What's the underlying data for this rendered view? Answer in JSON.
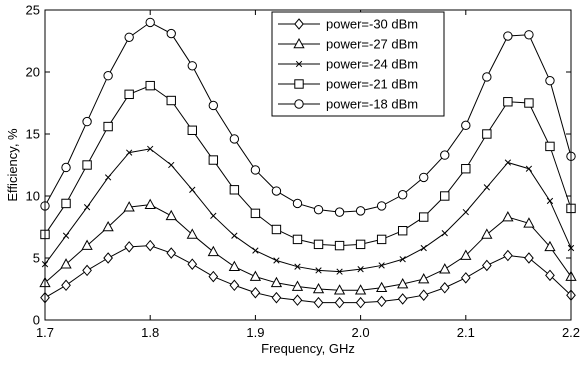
{
  "chart_data": {
    "type": "line",
    "xlabel": "Frequency, GHz",
    "ylabel": "Efficiency, %",
    "xlim": [
      1.7,
      2.2
    ],
    "ylim": [
      0,
      25
    ],
    "xticks": [
      "1.7",
      "1.8",
      "1.9",
      "2.0",
      "2.1",
      "2.2"
    ],
    "yticks": [
      "0",
      "5",
      "10",
      "15",
      "20",
      "25"
    ],
    "grid": false,
    "legend_position": "top-right",
    "x": [
      1.7,
      1.72,
      1.74,
      1.76,
      1.78,
      1.8,
      1.82,
      1.84,
      1.86,
      1.88,
      1.9,
      1.92,
      1.94,
      1.96,
      1.98,
      2.0,
      2.02,
      2.04,
      2.06,
      2.08,
      2.1,
      2.12,
      2.14,
      2.16,
      2.18,
      2.2
    ],
    "series": [
      {
        "name": "power=-30 dBm",
        "marker": "diamond",
        "values": [
          1.8,
          2.8,
          4.0,
          5.0,
          5.9,
          6.0,
          5.4,
          4.5,
          3.5,
          2.8,
          2.2,
          1.8,
          1.6,
          1.4,
          1.4,
          1.4,
          1.5,
          1.7,
          2.0,
          2.6,
          3.4,
          4.4,
          5.2,
          5.0,
          3.6,
          2.0
        ]
      },
      {
        "name": "power=-27 dBm",
        "marker": "triangle",
        "values": [
          3.0,
          4.5,
          6.0,
          7.5,
          9.1,
          9.3,
          8.4,
          6.9,
          5.5,
          4.3,
          3.5,
          3.0,
          2.7,
          2.5,
          2.4,
          2.4,
          2.6,
          2.9,
          3.3,
          4.1,
          5.2,
          6.9,
          8.3,
          7.8,
          5.9,
          3.5
        ]
      },
      {
        "name": "power=-24 dBm",
        "marker": "x",
        "values": [
          4.5,
          6.8,
          9.1,
          11.5,
          13.5,
          13.8,
          12.5,
          10.5,
          8.4,
          6.8,
          5.6,
          4.8,
          4.3,
          4.0,
          3.9,
          4.1,
          4.4,
          4.9,
          5.8,
          7.0,
          8.7,
          10.7,
          12.7,
          12.2,
          9.6,
          5.8
        ]
      },
      {
        "name": "power=-21 dBm",
        "marker": "square",
        "values": [
          6.9,
          9.4,
          12.5,
          15.6,
          18.2,
          18.9,
          17.7,
          15.3,
          12.9,
          10.5,
          8.6,
          7.3,
          6.5,
          6.1,
          6.0,
          6.1,
          6.5,
          7.2,
          8.3,
          10.0,
          12.2,
          15.0,
          17.6,
          17.5,
          14.0,
          9.0
        ]
      },
      {
        "name": "power=-18 dBm",
        "marker": "circle",
        "values": [
          9.2,
          12.3,
          16.0,
          19.7,
          22.8,
          24.0,
          23.1,
          20.5,
          17.3,
          14.6,
          12.1,
          10.4,
          9.4,
          8.9,
          8.7,
          8.8,
          9.2,
          10.1,
          11.5,
          13.3,
          15.7,
          19.6,
          22.9,
          23.0,
          19.3,
          13.2
        ]
      }
    ]
  }
}
